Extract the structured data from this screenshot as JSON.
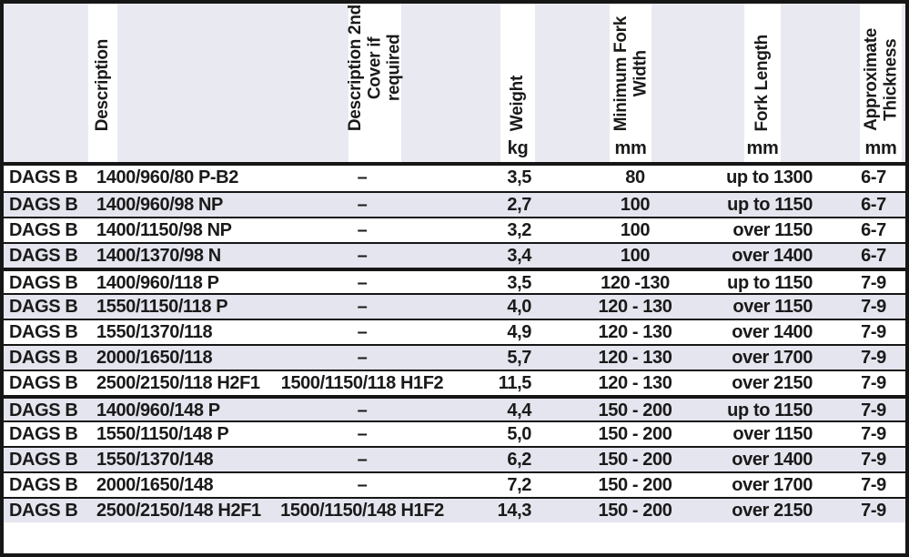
{
  "colors": {
    "border": "#161616",
    "stripe": "#e5e5ef",
    "header_bg": "#e9e9f2",
    "ink": "#1a1a1a"
  },
  "table": {
    "columns": [
      {
        "id": "description",
        "label": "Description",
        "unit": ""
      },
      {
        "id": "description2",
        "label": "Description 2nd\nCover if required",
        "unit": ""
      },
      {
        "id": "weight",
        "label": "Weight",
        "unit": "kg"
      },
      {
        "id": "fork_width",
        "label": "Minimum Fork\nWidth",
        "unit": "mm"
      },
      {
        "id": "fork_length",
        "label": "Fork Length",
        "unit": "mm"
      },
      {
        "id": "thickness",
        "label": "Approximate\nThickness",
        "unit": "mm"
      }
    ],
    "rows": [
      {
        "prefix": "DAGS B",
        "spec": "1400/960/80 P-B2",
        "description2": "–",
        "weight": "3,5",
        "fork_width": "80",
        "fork_length": "up to 1300",
        "thickness": "6-7",
        "group_start": false
      },
      {
        "prefix": "DAGS B",
        "spec": "1400/960/98 NP",
        "description2": "–",
        "weight": "2,7",
        "fork_width": "100",
        "fork_length": "up to 1150",
        "thickness": "6-7",
        "group_start": false
      },
      {
        "prefix": "DAGS B",
        "spec": "1400/1150/98 NP",
        "description2": "–",
        "weight": "3,2",
        "fork_width": "100",
        "fork_length": "over 1150",
        "thickness": "6-7",
        "group_start": false
      },
      {
        "prefix": "DAGS B",
        "spec": "1400/1370/98 N",
        "description2": "–",
        "weight": "3,4",
        "fork_width": "100",
        "fork_length": "over 1400",
        "thickness": "6-7",
        "group_start": false
      },
      {
        "prefix": "DAGS B",
        "spec": "1400/960/118 P",
        "description2": "–",
        "weight": "3,5",
        "fork_width": "120 -130",
        "fork_length": "up to 1150",
        "thickness": "7-9",
        "group_start": true
      },
      {
        "prefix": "DAGS B",
        "spec": "1550/1150/118 P",
        "description2": "–",
        "weight": "4,0",
        "fork_width": "120 - 130",
        "fork_length": "over 1150",
        "thickness": "7-9",
        "group_start": false
      },
      {
        "prefix": "DAGS B",
        "spec": "1550/1370/118",
        "description2": "–",
        "weight": "4,9",
        "fork_width": "120 - 130",
        "fork_length": "over 1400",
        "thickness": "7-9",
        "group_start": false
      },
      {
        "prefix": "DAGS B",
        "spec": "2000/1650/118",
        "description2": "–",
        "weight": "5,7",
        "fork_width": "120 - 130",
        "fork_length": "over 1700",
        "thickness": "7-9",
        "group_start": false
      },
      {
        "prefix": "DAGS B",
        "spec": "2500/2150/118 H2F1",
        "description2": "1500/1150/118 H1F2",
        "weight": "11,5",
        "fork_width": "120 - 130",
        "fork_length": "over 2150",
        "thickness": "7-9",
        "group_start": false
      },
      {
        "prefix": "DAGS B",
        "spec": "1400/960/148 P",
        "description2": "–",
        "weight": "4,4",
        "fork_width": "150 - 200",
        "fork_length": "up to 1150",
        "thickness": "7-9",
        "group_start": true
      },
      {
        "prefix": "DAGS B",
        "spec": "1550/1150/148 P",
        "description2": "–",
        "weight": "5,0",
        "fork_width": "150 - 200",
        "fork_length": "over 1150",
        "thickness": "7-9",
        "group_start": false
      },
      {
        "prefix": "DAGS B",
        "spec": "1550/1370/148",
        "description2": "–",
        "weight": "6,2",
        "fork_width": "150 - 200",
        "fork_length": "over 1400",
        "thickness": "7-9",
        "group_start": false
      },
      {
        "prefix": "DAGS B",
        "spec": "2000/1650/148",
        "description2": "–",
        "weight": "7,2",
        "fork_width": "150 - 200",
        "fork_length": "over 1700",
        "thickness": "7-9",
        "group_start": false
      },
      {
        "prefix": "DAGS B",
        "spec": "2500/2150/148 H2F1",
        "description2": "1500/1150/148 H1F2",
        "weight": "14,3",
        "fork_width": "150 - 200",
        "fork_length": "over 2150",
        "thickness": "7-9",
        "group_start": false
      }
    ]
  }
}
